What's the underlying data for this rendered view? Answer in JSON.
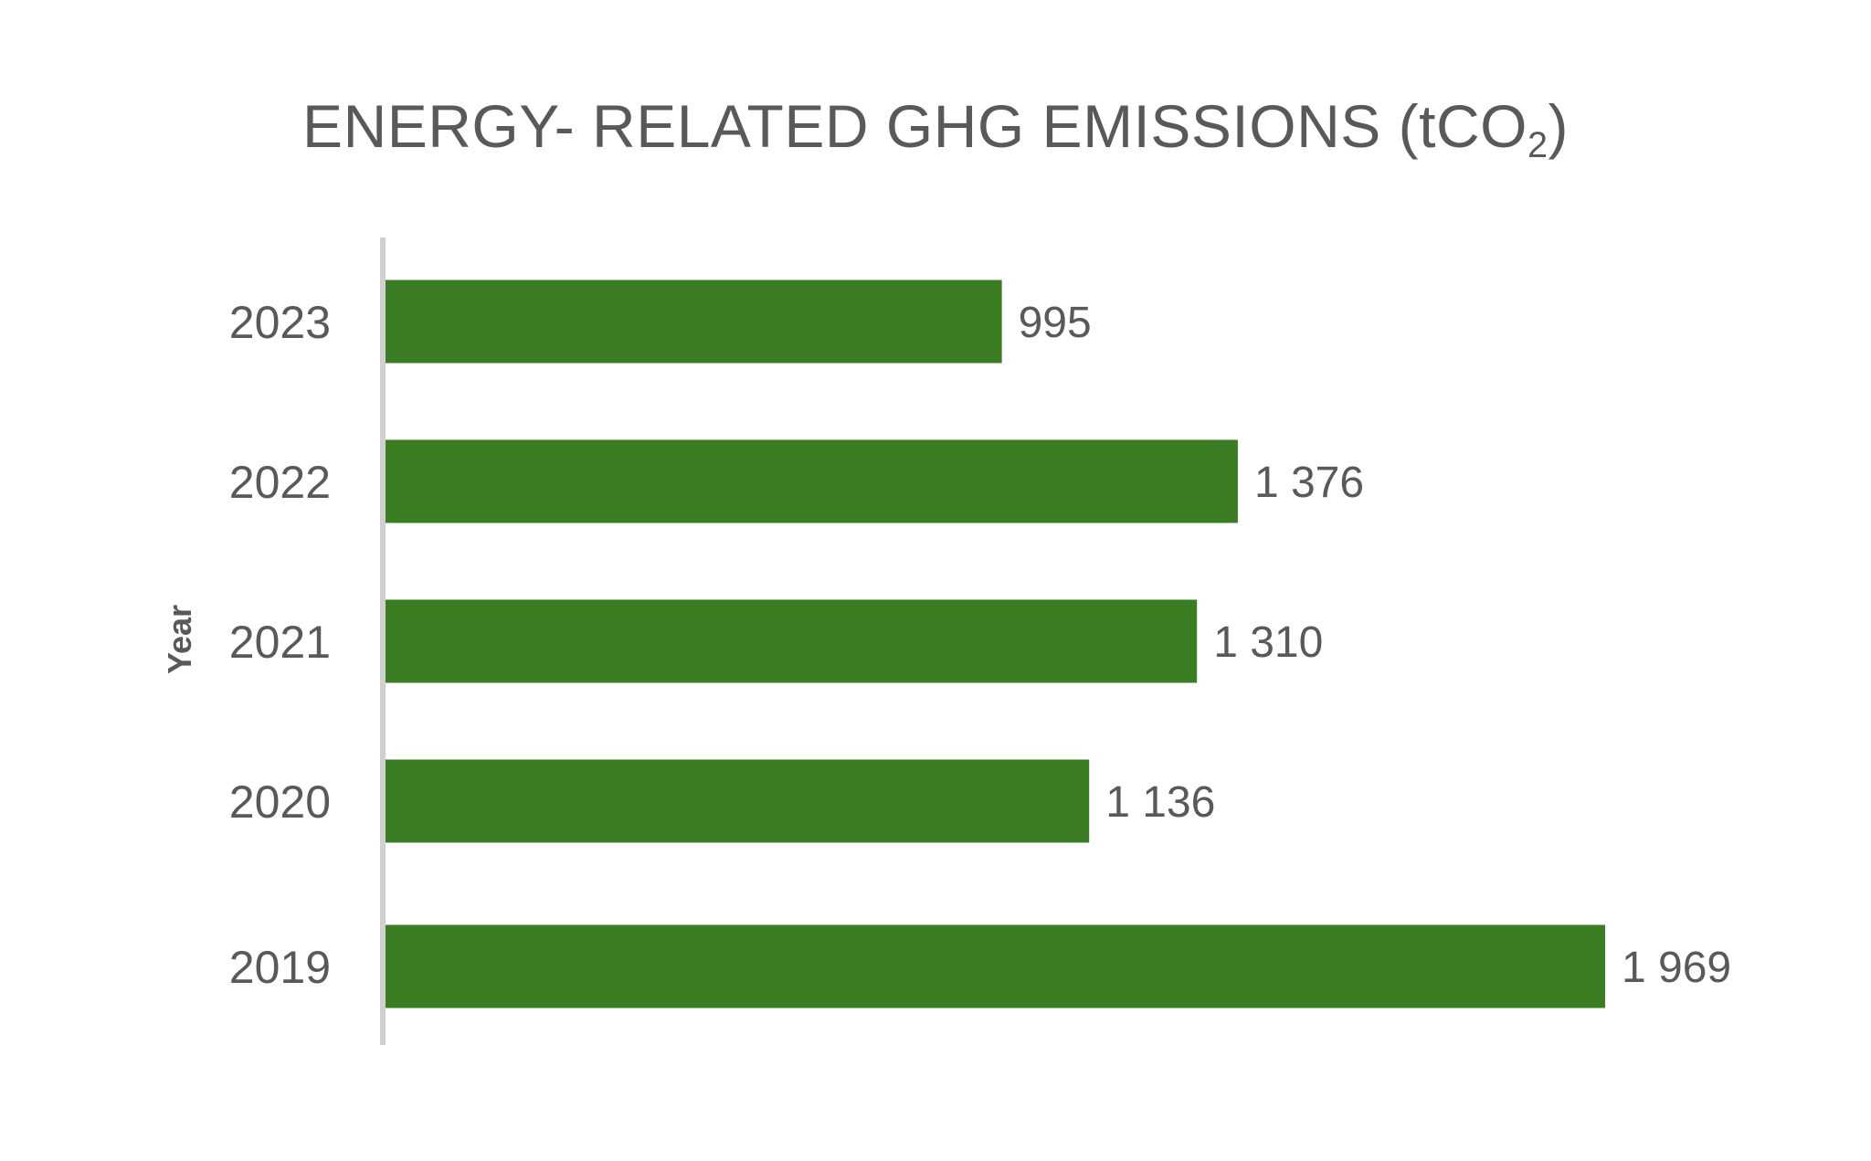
{
  "chart_data": {
    "type": "bar",
    "orientation": "horizontal",
    "title_main": "ENERGY- RELATED GHG EMISSIONS (tCO",
    "title_sub": "2",
    "title_end": ")",
    "ylabel": "Year",
    "categories": [
      "2023",
      "2022",
      "2021",
      "2020",
      "2019"
    ],
    "values": [
      995,
      1376,
      1310,
      1136,
      1969
    ],
    "value_labels": [
      "995",
      "1 376",
      "1 310",
      "1 136",
      "1 969"
    ],
    "xlim": [
      0,
      1969
    ],
    "grid": false,
    "legend": "none",
    "bar_color": "#3B7D23",
    "axis_color": "#D0D0D0",
    "text_color": "#595959"
  }
}
